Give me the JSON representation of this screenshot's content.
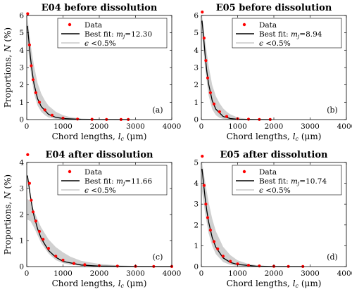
{
  "legend": {
    "data_label": "Data",
    "fit_prefix": "Best fit: ",
    "fit_var": "m",
    "fit_sub": "j",
    "band_prefix": "ϵ",
    "band_rest": " <0.5%"
  },
  "colors": {
    "data": "#ff0000",
    "fit": "#000000",
    "band": "#c8c8c8"
  },
  "chart_data": [
    {
      "type": "scatter",
      "title": "E04 before dissolution",
      "panel_label": "(a)",
      "xlabel": "Chord lengths,",
      "xlabel_var": "l",
      "xlabel_sub": "c",
      "xlabel_unit": "(μm)",
      "ylabel": "Proportions,",
      "ylabel_var": "N",
      "ylabel_unit": "(%)",
      "xlim": [
        0,
        4000
      ],
      "ylim": [
        0,
        6
      ],
      "xticks": [
        "0",
        "1000",
        "2000",
        "3000",
        "4000"
      ],
      "yticks": [
        "0",
        "1",
        "2",
        "3",
        "4",
        "5",
        "6"
      ],
      "fit_value": "=12.30",
      "series": [
        {
          "name": "Data",
          "x": [
            25,
            75,
            125,
            175,
            250,
            350,
            500,
            700,
            1000,
            1400,
            1800,
            2200,
            2600,
            2800
          ],
          "y": [
            6.1,
            4.3,
            3.1,
            2.3,
            1.55,
            1.0,
            0.55,
            0.25,
            0.08,
            0.03,
            0.015,
            0.01,
            0.005,
            0.003
          ]
        },
        {
          "name": "Best fit",
          "x": [
            20,
            60,
            100,
            150,
            200,
            300,
            400,
            600,
            800,
            1000,
            1500,
            2000,
            2800
          ],
          "y": [
            5.4,
            4.5,
            3.6,
            2.75,
            2.05,
            1.2,
            0.75,
            0.3,
            0.13,
            0.06,
            0.015,
            0.005,
            0.001
          ]
        }
      ],
      "band": {
        "x": [
          20,
          100,
          200,
          300,
          400,
          500,
          600,
          800,
          1000,
          1200,
          1500,
          2000,
          2800
        ],
        "upper": [
          5.9,
          4.4,
          3.1,
          2.1,
          1.5,
          1.1,
          0.8,
          0.45,
          0.25,
          0.14,
          0.06,
          0.02,
          0.005
        ],
        "lower": [
          4.4,
          2.9,
          1.5,
          0.8,
          0.45,
          0.25,
          0.12,
          0.04,
          0.015,
          0.006,
          0.002,
          0.0,
          0.0
        ]
      }
    },
    {
      "type": "scatter",
      "title": "E05 before dissolution",
      "panel_label": "(b)",
      "xlabel": "Chord lengths,",
      "xlabel_var": "l",
      "xlabel_sub": "c",
      "xlabel_unit": "(μm)",
      "ylabel": "Proportions,",
      "ylabel_var": "N",
      "ylabel_unit": "(%)",
      "xlim": [
        0,
        4000
      ],
      "ylim": [
        0,
        6
      ],
      "xticks": [
        "0",
        "1000",
        "2000",
        "3000",
        "4000"
      ],
      "yticks": [
        "0",
        "1",
        "2",
        "3",
        "4",
        "5",
        "6"
      ],
      "fit_value": "=8.94",
      "series": [
        {
          "name": "Data",
          "x": [
            25,
            75,
            125,
            175,
            250,
            350,
            500,
            700,
            1000,
            1300,
            1600,
            1900
          ],
          "y": [
            6.2,
            4.7,
            3.4,
            2.4,
            1.55,
            0.9,
            0.45,
            0.18,
            0.05,
            0.02,
            0.01,
            0.004
          ]
        },
        {
          "name": "Best fit",
          "x": [
            20,
            60,
            100,
            150,
            200,
            300,
            400,
            600,
            800,
            1000,
            1500,
            1900
          ],
          "y": [
            5.7,
            4.8,
            3.8,
            2.8,
            2.05,
            1.1,
            0.6,
            0.18,
            0.06,
            0.02,
            0.003,
            0.001
          ]
        }
      ],
      "band": {
        "x": [
          20,
          100,
          200,
          300,
          400,
          500,
          600,
          700,
          800,
          1000,
          1300,
          1900
        ],
        "upper": [
          6.0,
          4.6,
          3.1,
          2.0,
          1.35,
          0.95,
          0.65,
          0.45,
          0.3,
          0.12,
          0.03,
          0.002
        ],
        "lower": [
          4.9,
          3.0,
          1.4,
          0.6,
          0.25,
          0.1,
          0.04,
          0.015,
          0.005,
          0.0,
          0.0,
          0.0
        ]
      }
    },
    {
      "type": "scatter",
      "title": "E04 after dissolution",
      "panel_label": "(c)",
      "xlabel": "Chord lengths,",
      "xlabel_var": "l",
      "xlabel_sub": "c",
      "xlabel_unit": "(μm)",
      "ylabel": "Proportions,",
      "ylabel_var": "N",
      "ylabel_unit": "(%)",
      "xlim": [
        0,
        4000
      ],
      "ylim": [
        0,
        4
      ],
      "xticks": [
        "0",
        "1000",
        "2000",
        "3000",
        "4000"
      ],
      "yticks": [
        "0",
        "1",
        "2",
        "3",
        "4"
      ],
      "fit_value": "=11.66",
      "series": [
        {
          "name": "Data",
          "x": [
            25,
            75,
            125,
            175,
            250,
            350,
            450,
            600,
            800,
            1000,
            1300,
            1600,
            2000,
            2500,
            3000,
            3500,
            4000
          ],
          "y": [
            4.3,
            3.2,
            2.55,
            2.1,
            1.75,
            1.35,
            1.05,
            0.7,
            0.4,
            0.25,
            0.12,
            0.07,
            0.03,
            0.015,
            0.01,
            0.005,
            0.003
          ]
        },
        {
          "name": "Best fit",
          "x": [
            20,
            60,
            100,
            150,
            200,
            300,
            400,
            600,
            800,
            1000,
            1500,
            2000,
            3000,
            4000
          ],
          "y": [
            3.5,
            3.1,
            2.7,
            2.3,
            1.95,
            1.45,
            1.08,
            0.62,
            0.36,
            0.2,
            0.06,
            0.02,
            0.003,
            0.001
          ]
        }
      ],
      "band": {
        "x": [
          20,
          100,
          200,
          300,
          400,
          600,
          800,
          1000,
          1200,
          1500,
          2000,
          2500,
          3000,
          4000
        ],
        "upper": [
          2.6,
          2.5,
          2.15,
          1.8,
          1.5,
          1.05,
          0.75,
          0.55,
          0.38,
          0.22,
          0.1,
          0.05,
          0.025,
          0.005
        ],
        "lower": [
          1.8,
          1.75,
          1.5,
          1.2,
          0.9,
          0.5,
          0.25,
          0.13,
          0.07,
          0.03,
          0.01,
          0.003,
          0.001,
          0.0
        ]
      }
    },
    {
      "type": "scatter",
      "title": "E05 after dissolution",
      "panel_label": "(d)",
      "xlabel": "Chord lengths,",
      "xlabel_var": "l",
      "xlabel_sub": "c",
      "xlabel_unit": "(μm)",
      "ylabel": "Proportions,",
      "ylabel_var": "N",
      "ylabel_unit": "(%)",
      "xlim": [
        0,
        4000
      ],
      "ylim": [
        0,
        5
      ],
      "xticks": [
        "0",
        "1000",
        "2000",
        "3000",
        "4000"
      ],
      "yticks": [
        "0",
        "1",
        "2",
        "3",
        "4",
        "5"
      ],
      "fit_value": "=10.74",
      "series": [
        {
          "name": "Data",
          "x": [
            25,
            75,
            125,
            175,
            250,
            350,
            450,
            600,
            800,
            1000,
            1300,
            1600,
            2000,
            2400,
            2800
          ],
          "y": [
            5.3,
            3.9,
            3.0,
            2.35,
            1.75,
            1.2,
            0.85,
            0.5,
            0.25,
            0.13,
            0.06,
            0.03,
            0.015,
            0.008,
            0.004
          ]
        },
        {
          "name": "Best fit",
          "x": [
            20,
            60,
            100,
            150,
            200,
            300,
            400,
            600,
            800,
            1000,
            1500,
            2000,
            2800
          ],
          "y": [
            4.7,
            4.0,
            3.35,
            2.7,
            2.15,
            1.4,
            0.93,
            0.42,
            0.2,
            0.1,
            0.02,
            0.005,
            0.001
          ]
        }
      ],
      "band": {
        "x": [
          20,
          100,
          200,
          300,
          400,
          600,
          800,
          1000,
          1300,
          1600,
          2000,
          2800
        ],
        "upper": [
          5.0,
          4.1,
          3.1,
          2.3,
          1.7,
          0.95,
          0.55,
          0.3,
          0.12,
          0.05,
          0.02,
          0.003
        ],
        "lower": [
          3.6,
          2.6,
          1.6,
          1.0,
          0.6,
          0.22,
          0.08,
          0.03,
          0.008,
          0.002,
          0.0,
          0.0
        ]
      }
    }
  ]
}
